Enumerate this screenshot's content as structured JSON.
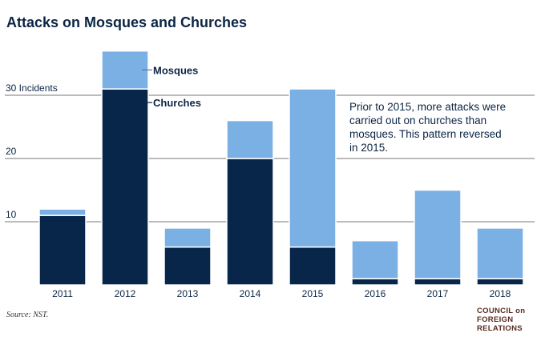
{
  "title": "Attacks on Mosques and Churches",
  "source": "Source: NST.",
  "logo": [
    "COUNCIL on",
    "FOREIGN",
    "RELATIONS"
  ],
  "annotation": "Prior to 2015, more attacks were carried out on churches than mosques. This pattern reversed in 2015.",
  "chart_data": {
    "type": "bar",
    "stacked": true,
    "categories": [
      "2011",
      "2012",
      "2013",
      "2014",
      "2015",
      "2016",
      "2017",
      "2018"
    ],
    "series": [
      {
        "name": "Churches",
        "values": [
          11,
          31,
          6,
          20,
          6,
          1,
          1,
          1
        ],
        "color": "#07264a"
      },
      {
        "name": "Mosques",
        "values": [
          1,
          6,
          3,
          6,
          25,
          6,
          14,
          8
        ],
        "color": "#7ab0e3"
      }
    ],
    "yticks": [
      {
        "value": 10,
        "label": "10"
      },
      {
        "value": 20,
        "label": "20"
      },
      {
        "value": 30,
        "label": "30 Incidents"
      }
    ],
    "ylim": [
      0,
      38
    ],
    "grid": true,
    "legend": "inline-labels"
  }
}
